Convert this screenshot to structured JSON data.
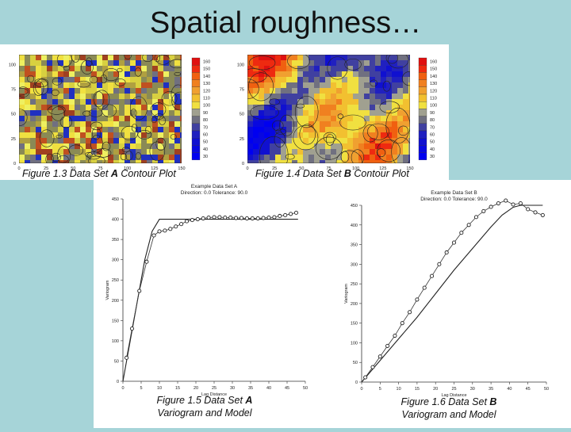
{
  "slide": {
    "title": "Spatial roughness…"
  },
  "contour_a": {
    "caption_prefix": "Figure 1.3  Data Set ",
    "caption_bold": "A",
    "caption_suffix": " Contour Plot",
    "y_ticks": [
      "0",
      "25",
      "50",
      "75",
      "100"
    ],
    "x_ticks": [
      "0",
      "25",
      "50",
      "75",
      "100",
      "125",
      "150"
    ],
    "legend": [
      "160",
      "150",
      "140",
      "130",
      "120",
      "110",
      "100",
      "90",
      "80",
      "70",
      "60",
      "50",
      "40",
      "30"
    ]
  },
  "contour_b": {
    "caption_prefix": "Figure 1.4  Data Set ",
    "caption_bold": "B",
    "caption_suffix": " Contour Plot",
    "y_ticks": [
      "0",
      "25",
      "50",
      "75",
      "100"
    ],
    "x_ticks": [
      "0",
      "25",
      "50",
      "75",
      "100",
      "125",
      "150"
    ],
    "legend": [
      "160",
      "150",
      "140",
      "130",
      "120",
      "110",
      "100",
      "90",
      "80",
      "70",
      "60",
      "50",
      "40",
      "30"
    ]
  },
  "legend_colors": [
    "#e01010",
    "#ee2a10",
    "#f06010",
    "#f08020",
    "#f0a030",
    "#f2c030",
    "#f0e040",
    "#a0a090",
    "#707080",
    "#4040a0",
    "#2020c0",
    "#1010d0",
    "#0808e0",
    "#0000f0"
  ],
  "chart_data": [
    {
      "type": "scatter",
      "title": "Example Data Set A",
      "subtitle": "Direction: 0.0   Tolerance: 90.0",
      "xlabel": "Lag Distance",
      "ylabel": "Variogram",
      "xlim": [
        0,
        50
      ],
      "ylim": [
        0,
        450
      ],
      "x_ticks": [
        0,
        5,
        10,
        15,
        20,
        25,
        30,
        35,
        40,
        45,
        50
      ],
      "y_ticks": [
        0,
        50,
        100,
        150,
        200,
        250,
        300,
        350,
        400,
        450
      ],
      "series": [
        {
          "points": [
            [
              1,
              58
            ],
            [
              2.5,
              130
            ],
            [
              4.5,
              223
            ],
            [
              6.5,
              295
            ],
            [
              8.5,
              360
            ],
            [
              10,
              370
            ],
            [
              11.5,
              372
            ],
            [
              13,
              376
            ],
            [
              14.5,
              382
            ],
            [
              16,
              388
            ],
            [
              17.5,
              395
            ],
            [
              19,
              398
            ],
            [
              20.5,
              400
            ],
            [
              22,
              402
            ],
            [
              23.5,
              404
            ],
            [
              25,
              405
            ],
            [
              26.5,
              405
            ],
            [
              28,
              404
            ],
            [
              29.5,
              404
            ],
            [
              31,
              403
            ],
            [
              32.5,
              403
            ],
            [
              34,
              402
            ],
            [
              35.5,
              402
            ],
            [
              37,
              402
            ],
            [
              38.5,
              403
            ],
            [
              40,
              404
            ],
            [
              41.5,
              405
            ],
            [
              43,
              408
            ],
            [
              44.5,
              410
            ],
            [
              46,
              413
            ],
            [
              47.5,
              416
            ]
          ]
        },
        {
          "model": [
            [
              0,
              0
            ],
            [
              2,
              100
            ],
            [
              4,
              200
            ],
            [
              6,
              300
            ],
            [
              8,
              370
            ],
            [
              10,
              400
            ],
            [
              15,
              400
            ],
            [
              20,
              400
            ],
            [
              25,
              400
            ],
            [
              30,
              400
            ],
            [
              35,
              400
            ],
            [
              40,
              400
            ],
            [
              45,
              400
            ],
            [
              48,
              400
            ]
          ]
        }
      ],
      "caption_line1_prefix": "Figure 1.5  Data Set ",
      "caption_bold": "A",
      "caption_line2": "Variogram and Model"
    },
    {
      "type": "scatter",
      "title": "Example Data Set B",
      "subtitle": "Direction: 0.0   Tolerance: 90.0",
      "xlabel": "Lag Distance",
      "ylabel": "Variogram",
      "xlim": [
        0,
        50
      ],
      "ylim": [
        0,
        450
      ],
      "x_ticks": [
        0,
        5,
        10,
        15,
        20,
        25,
        30,
        35,
        40,
        45,
        50
      ],
      "y_ticks": [
        0,
        50,
        100,
        150,
        200,
        250,
        300,
        350,
        400,
        450
      ],
      "series": [
        {
          "points": [
            [
              1,
              12
            ],
            [
              3,
              38
            ],
            [
              5,
              65
            ],
            [
              7,
              92
            ],
            [
              9,
              118
            ],
            [
              11,
              150
            ],
            [
              13,
              178
            ],
            [
              15,
              210
            ],
            [
              17,
              240
            ],
            [
              19,
              270
            ],
            [
              21,
              300
            ],
            [
              23,
              330
            ],
            [
              25,
              355
            ],
            [
              27,
              380
            ],
            [
              29,
              400
            ],
            [
              31,
              420
            ],
            [
              33,
              435
            ],
            [
              35,
              446
            ],
            [
              37,
              455
            ],
            [
              39,
              462
            ],
            [
              41,
              452
            ],
            [
              43,
              455
            ],
            [
              45,
              440
            ],
            [
              47,
              432
            ],
            [
              49,
              425
            ]
          ]
        },
        {
          "model": [
            [
              0,
              0
            ],
            [
              5,
              55
            ],
            [
              10,
              110
            ],
            [
              15,
              165
            ],
            [
              20,
              225
            ],
            [
              25,
              285
            ],
            [
              30,
              340
            ],
            [
              35,
              395
            ],
            [
              38,
              425
            ],
            [
              41,
              445
            ],
            [
              43,
              450
            ],
            [
              46,
              450
            ],
            [
              49,
              450
            ]
          ]
        }
      ],
      "caption_line1_prefix": "Figure 1.6  Data Set ",
      "caption_bold": "B",
      "caption_line2": "Variogram and Model"
    }
  ]
}
